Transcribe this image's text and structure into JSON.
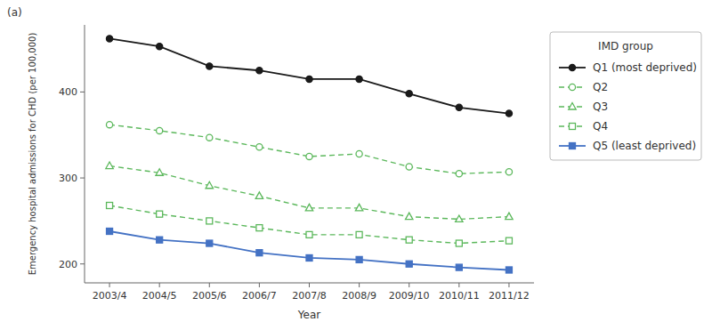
{
  "chart_data": {
    "type": "line",
    "title": "(a)",
    "xlabel": "Year",
    "ylabel": "Emergency hospital admissions for CHD (per 100,000)",
    "categories": [
      "2003/4",
      "2004/5",
      "2005/6",
      "2006/7",
      "2007/8",
      "2008/9",
      "2009/10",
      "2010/11",
      "2011/12"
    ],
    "series": [
      {
        "name": "Q1 (most deprived)",
        "color": "#1a1a1a",
        "marker": "circle",
        "line_style": "solid",
        "values": [
          462,
          453,
          430,
          425,
          415,
          415,
          398,
          382,
          375
        ]
      },
      {
        "name": "Q2",
        "color": "#5cb85c",
        "marker": "circle-open",
        "line_style": "dashed",
        "values": [
          362,
          355,
          347,
          336,
          325,
          328,
          313,
          305,
          307
        ]
      },
      {
        "name": "Q3",
        "color": "#5cb85c",
        "marker": "triangle-open",
        "line_style": "dashed",
        "values": [
          314,
          306,
          291,
          279,
          265,
          265,
          255,
          252,
          255
        ]
      },
      {
        "name": "Q4",
        "color": "#5cb85c",
        "marker": "square-open",
        "line_style": "dashed",
        "values": [
          268,
          258,
          250,
          242,
          234,
          234,
          228,
          224,
          227
        ]
      },
      {
        "name": "Q5 (least deprived)",
        "color": "#4472c4",
        "marker": "square",
        "line_style": "solid",
        "values": [
          238,
          228,
          224,
          213,
          207,
          205,
          200,
          196,
          193
        ]
      }
    ],
    "legend_title": "IMD group",
    "legend": "right",
    "ylim": [
      178,
      478
    ],
    "yticks": [
      200,
      300,
      400
    ],
    "grid": false
  }
}
